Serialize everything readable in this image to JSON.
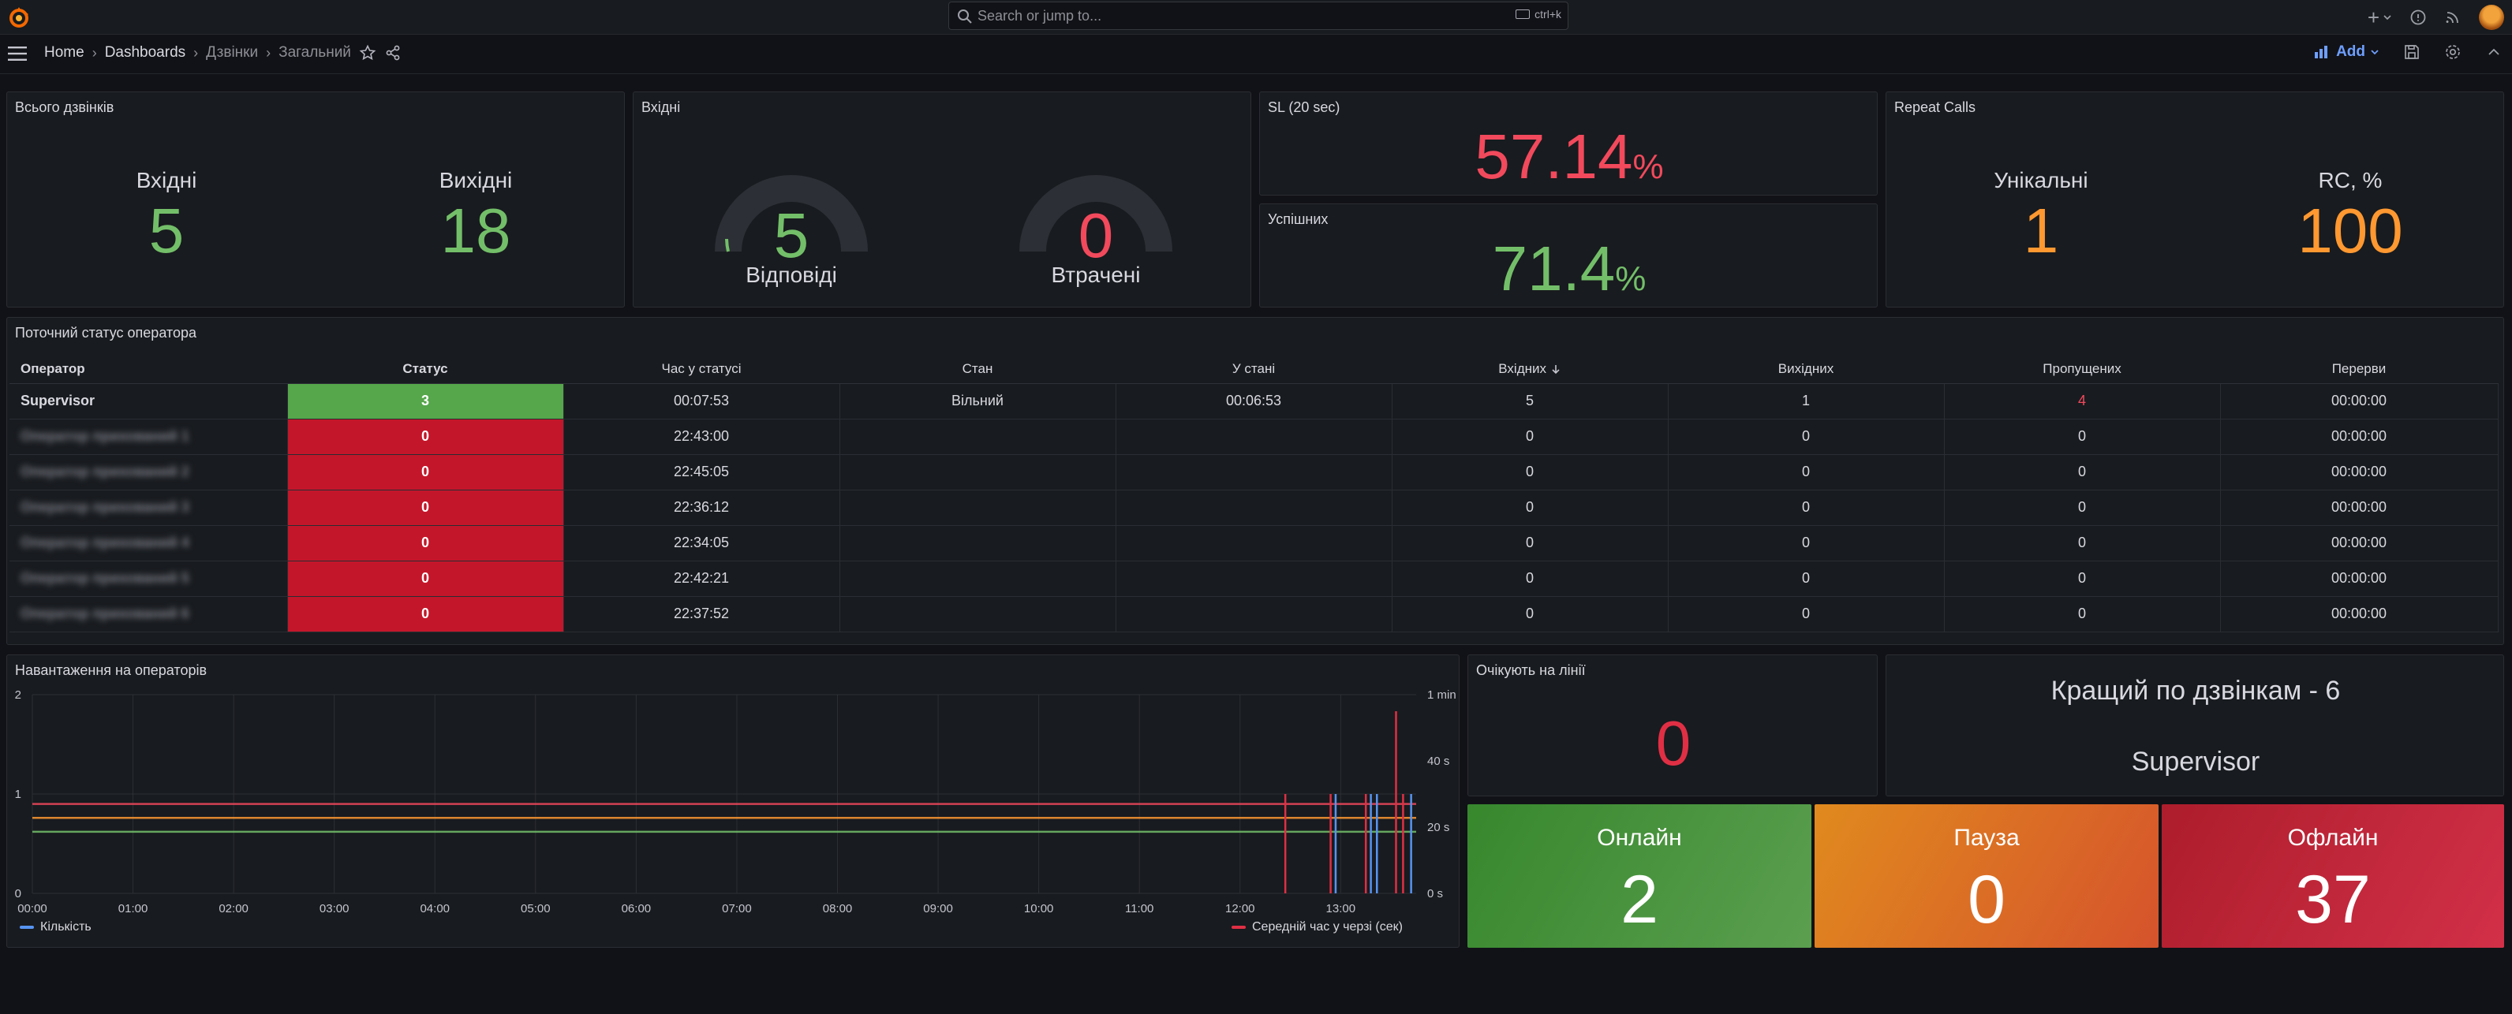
{
  "search": {
    "placeholder": "Search or jump to...",
    "shortcut": "ctrl+k"
  },
  "breadcrumb": {
    "home": "Home",
    "dashboards": "Dashboards",
    "folder": "Дзвінки",
    "current": "Загальний"
  },
  "toolbar": {
    "add_label": "Add"
  },
  "panels": {
    "total_calls": {
      "title": "Всього дзвінків",
      "incoming_label": "Вхідні",
      "incoming_value": "5",
      "outgoing_label": "Вихідні",
      "outgoing_value": "18"
    },
    "incoming": {
      "title": "Вхідні",
      "answered_label": "Відповіді",
      "answered_value": "5",
      "lost_label": "Втрачені",
      "lost_value": "0"
    },
    "sl": {
      "title": "SL (20 sec)",
      "value": "57.14",
      "unit": "%"
    },
    "success": {
      "title": "Успішних",
      "value": "71.4",
      "unit": "%"
    },
    "repeat_calls": {
      "title": "Repeat Calls",
      "unique_label": "Унікальні",
      "unique_value": "1",
      "rc_label": "RC, %",
      "rc_value": "100"
    },
    "operator_status": {
      "title": "Поточний статус оператора",
      "columns": [
        "Оператор",
        "Статус",
        "Час у статусі",
        "Стан",
        "У стані",
        "Вхідних",
        "Вихідних",
        "Пропущених",
        "Перерви"
      ],
      "rows": [
        {
          "operator": "Supervisor",
          "status": "3",
          "status_time": "00:07:53",
          "state": "Вільний",
          "in_state": "00:06:53",
          "incoming": "5",
          "outgoing": "1",
          "missed": "4",
          "breaks": "00:00:00"
        },
        {
          "operator": "Оператор прихований 1",
          "status": "0",
          "status_time": "22:43:00",
          "state": "",
          "in_state": "",
          "incoming": "0",
          "outgoing": "0",
          "missed": "0",
          "breaks": "00:00:00"
        },
        {
          "operator": "Оператор прихований 2",
          "status": "0",
          "status_time": "22:45:05",
          "state": "",
          "in_state": "",
          "incoming": "0",
          "outgoing": "0",
          "missed": "0",
          "breaks": "00:00:00"
        },
        {
          "operator": "Оператор прихований 3",
          "status": "0",
          "status_time": "22:36:12",
          "state": "",
          "in_state": "",
          "incoming": "0",
          "outgoing": "0",
          "missed": "0",
          "breaks": "00:00:00"
        },
        {
          "operator": "Оператор прихований 4",
          "status": "0",
          "status_time": "22:34:05",
          "state": "",
          "in_state": "",
          "incoming": "0",
          "outgoing": "0",
          "missed": "0",
          "breaks": "00:00:00"
        },
        {
          "operator": "Оператор прихований 5",
          "status": "0",
          "status_time": "22:42:21",
          "state": "",
          "in_state": "",
          "incoming": "0",
          "outgoing": "0",
          "missed": "0",
          "breaks": "00:00:00"
        },
        {
          "operator": "Оператор прихований 6",
          "status": "0",
          "status_time": "22:37:52",
          "state": "",
          "in_state": "",
          "incoming": "0",
          "outgoing": "0",
          "missed": "0",
          "breaks": "00:00:00"
        }
      ]
    },
    "load": {
      "title": "Навантаження на операторів",
      "legend_left": "Кількість",
      "legend_right": "Середній час у черзі (сек)"
    },
    "waiting": {
      "title": "Очікують на лінії",
      "value": "0"
    },
    "best": {
      "title": "Кращий по дзвінкам - 6",
      "value": "Supervisor"
    },
    "online": {
      "label": "Онлайн",
      "value": "2"
    },
    "pause": {
      "label": "Пауза",
      "value": "0"
    },
    "offline": {
      "label": "Офлайн",
      "value": "37"
    }
  },
  "chart_data": {
    "type": "line",
    "x_ticks": [
      "00:00",
      "01:00",
      "02:00",
      "03:00",
      "04:00",
      "05:00",
      "06:00",
      "07:00",
      "08:00",
      "09:00",
      "10:00",
      "11:00",
      "12:00",
      "13:00"
    ],
    "y_left_ticks": [
      "0",
      "1",
      "2"
    ],
    "y_right_ticks": [
      "0 s",
      "20 s",
      "40 s",
      "1 min"
    ],
    "ylim_left": [
      0,
      2
    ],
    "ylim_right_sec": [
      0,
      60
    ],
    "threshold_lines": [
      {
        "color": "#f2495c",
        "value": 0.9
      },
      {
        "color": "#ff9830",
        "value": 0.76
      },
      {
        "color": "#73bf69",
        "value": 0.62
      }
    ],
    "series": [
      {
        "name": "Кількість",
        "color": "#5794f2",
        "spikes_hours": [
          12.95,
          13.3,
          13.36,
          13.7
        ],
        "spikes_values": [
          1,
          1,
          1,
          1
        ]
      },
      {
        "name": "Середній час у черзі (сек)",
        "color": "#e02f44",
        "spikes_hours": [
          12.45,
          12.9,
          13.25,
          13.55,
          13.62
        ],
        "spikes_values_sec": [
          30,
          30,
          30,
          55,
          30
        ]
      }
    ]
  }
}
